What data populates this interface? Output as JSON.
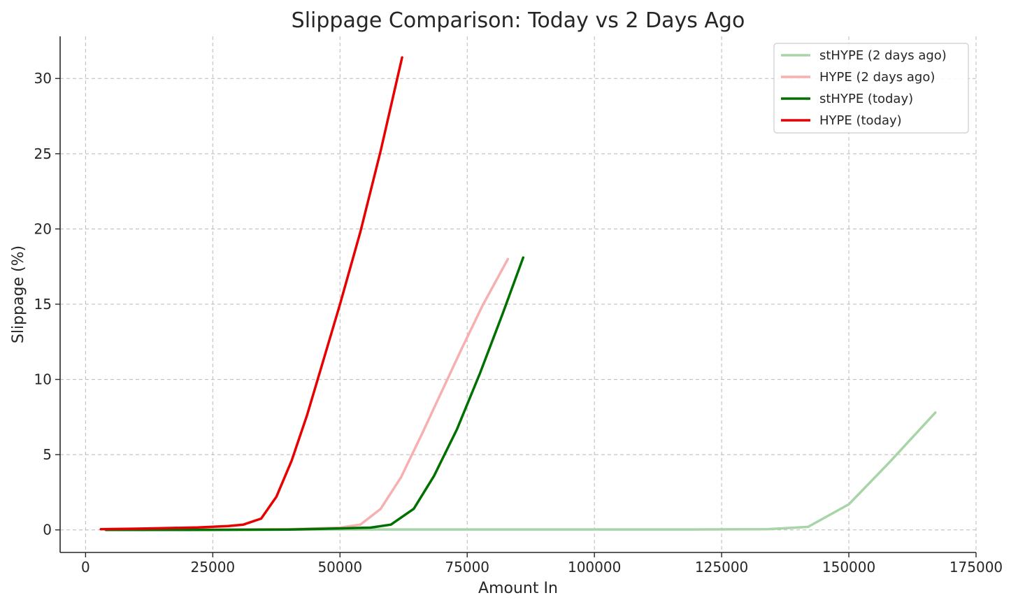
{
  "chart_data": {
    "type": "line",
    "title": "Slippage Comparison: Today vs 2 Days Ago",
    "xlabel": "Amount In",
    "ylabel": "Slippage (%)",
    "xlim": [
      -5000,
      175000
    ],
    "ylim": [
      -1.5,
      32.8
    ],
    "x_ticks": [
      0,
      25000,
      50000,
      75000,
      100000,
      125000,
      150000,
      175000
    ],
    "x_tick_labels": [
      "0",
      "25000",
      "50000",
      "75000",
      "100000",
      "125000",
      "150000",
      "175000"
    ],
    "y_ticks": [
      0,
      5,
      10,
      15,
      20,
      25,
      30
    ],
    "y_tick_labels": [
      "0",
      "5",
      "10",
      "15",
      "20",
      "25",
      "30"
    ],
    "grid": true,
    "legend_position": "top-right",
    "series": [
      {
        "name": "stHYPE (2 days ago)",
        "color": "#a8d5a8",
        "x": [
          4000,
          20000,
          40000,
          60000,
          80000,
          100000,
          120000,
          134000,
          142000,
          150000,
          158000,
          167000
        ],
        "y": [
          0.0,
          0.0,
          0.02,
          0.03,
          0.03,
          0.03,
          0.03,
          0.05,
          0.2,
          1.7,
          4.5,
          7.8
        ]
      },
      {
        "name": "HYPE (2 days ago)",
        "color": "#f7b0b0",
        "x": [
          4000,
          20000,
          40000,
          50000,
          54000,
          58000,
          62000,
          66000,
          70000,
          74000,
          78000,
          83000
        ],
        "y": [
          0.0,
          0.01,
          0.05,
          0.15,
          0.35,
          1.4,
          3.5,
          6.3,
          9.2,
          12.1,
          14.9,
          18.0
        ]
      },
      {
        "name": "stHYPE (today)",
        "color": "#007000",
        "x": [
          4000,
          20000,
          40000,
          50000,
          56000,
          60000,
          64500,
          68500,
          73000,
          77500,
          82000,
          86000
        ],
        "y": [
          0.0,
          0.0,
          0.02,
          0.1,
          0.15,
          0.35,
          1.4,
          3.6,
          6.7,
          10.4,
          14.4,
          18.1
        ]
      },
      {
        "name": "HYPE (today)",
        "color": "#e80000",
        "x": [
          3000,
          10000,
          16000,
          22000,
          28000,
          31000,
          34500,
          37500,
          40500,
          43500,
          46500,
          50000,
          54000,
          58000,
          62200
        ],
        "y": [
          0.05,
          0.08,
          0.12,
          0.16,
          0.25,
          0.35,
          0.75,
          2.2,
          4.6,
          7.6,
          11.0,
          15.0,
          19.8,
          25.2,
          31.4
        ]
      }
    ]
  }
}
